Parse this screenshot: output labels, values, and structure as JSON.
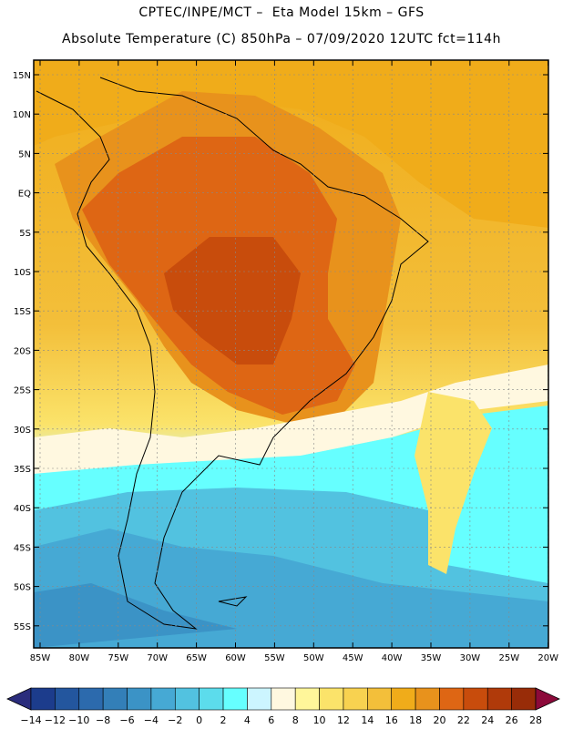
{
  "header": {
    "title_line1": "CPTEC/INPE/MCT –  Eta Model 15km – GFS",
    "title_line2": "Absolute Temperature (C) 850hPa – 07/09/2020 12UTC fct=114h"
  },
  "map": {
    "lat_labels": [
      "15N",
      "10N",
      "5N",
      "EQ",
      "5S",
      "10S",
      "15S",
      "20S",
      "25S",
      "30S",
      "35S",
      "40S",
      "45S",
      "50S",
      "55S"
    ],
    "lon_labels": [
      "85W",
      "80W",
      "75W",
      "70W",
      "65W",
      "60W",
      "55W",
      "50W",
      "45W",
      "40W",
      "35W",
      "30W",
      "25W",
      "20W"
    ]
  },
  "colorbar": {
    "tick_labels": [
      "-14",
      "-12",
      "-10",
      "-8",
      "-6",
      "-4",
      "-2",
      "0",
      "2",
      "4",
      "6",
      "8",
      "10",
      "12",
      "14",
      "16",
      "18",
      "20",
      "22",
      "24",
      "26",
      "28"
    ],
    "colors": [
      "#1c3c8c",
      "#23569e",
      "#2c6aad",
      "#337fb8",
      "#3b93c6",
      "#46a9d4",
      "#52c2e0",
      "#5cdcec",
      "#66ffff",
      "#ccf5ff",
      "#fff8e0",
      "#fff69a",
      "#fbe36a",
      "#f8d250",
      "#f3bf3a",
      "#f0ac1a",
      "#e8921c",
      "#de6614",
      "#c84c0c",
      "#b03a0a",
      "#982c08",
      "#7a1c0c",
      "#8c0a3a",
      "#2a2c7c"
    ]
  }
}
